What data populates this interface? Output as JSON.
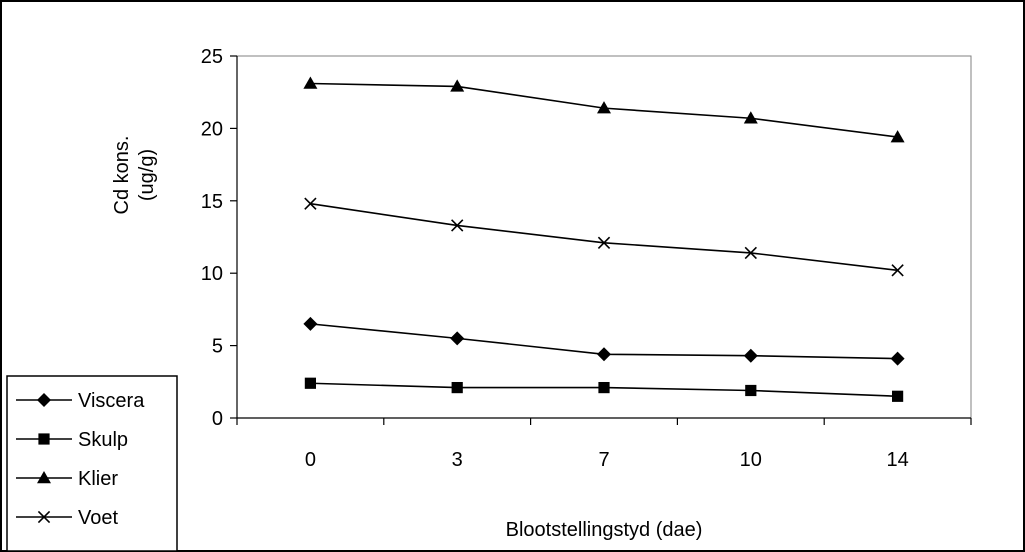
{
  "chart_data": {
    "type": "line",
    "xlabel": "Blootstellingstyd (dae)",
    "ylabel_line1": "Cd kons.",
    "ylabel_line2": "(ug/g)",
    "categories": [
      "0",
      "3",
      "7",
      "10",
      "14"
    ],
    "ylim": [
      0,
      25
    ],
    "yticks": [
      0,
      5,
      10,
      15,
      20,
      25
    ],
    "grid": false,
    "legend_position": "bottom-left",
    "series": [
      {
        "name": "Viscera",
        "marker": "diamond",
        "values": [
          6.5,
          5.5,
          4.4,
          4.3,
          4.1
        ]
      },
      {
        "name": "Skulp",
        "marker": "square",
        "values": [
          2.4,
          2.1,
          2.1,
          1.9,
          1.5
        ]
      },
      {
        "name": "Klier",
        "marker": "triangle",
        "values": [
          23.1,
          22.9,
          21.4,
          20.7,
          19.4
        ]
      },
      {
        "name": "Voet",
        "marker": "cross",
        "values": [
          14.8,
          13.3,
          12.1,
          11.4,
          10.2
        ]
      }
    ],
    "line_color": "#000000",
    "background_color": "#ffffff"
  }
}
